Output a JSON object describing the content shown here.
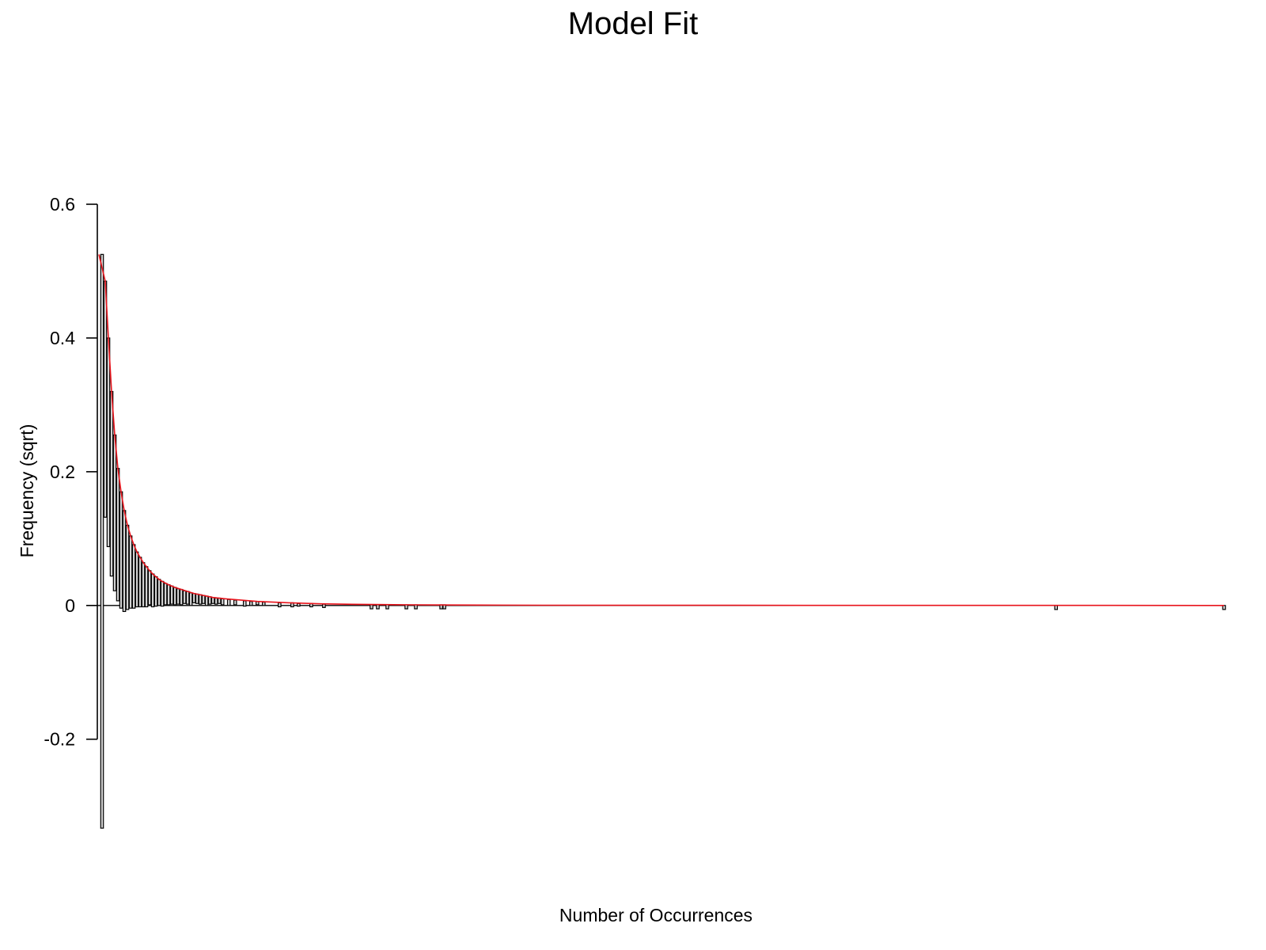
{
  "chart_data": {
    "type": "bar",
    "title": "Model Fit",
    "xlabel": "Number of Occurrences",
    "ylabel": "Frequency (sqrt)",
    "ylim": [
      -0.34,
      0.6
    ],
    "xlim": [
      0,
      355
    ],
    "y_ticks": [
      {
        "value": -0.2,
        "label": "-0.2"
      },
      {
        "value": 0,
        "label": "0"
      },
      {
        "value": 0.2,
        "label": "0.2"
      },
      {
        "value": 0.4,
        "label": "0.4"
      },
      {
        "value": 0.6,
        "label": "0.6"
      }
    ],
    "x_axis_ticks_shown": false,
    "grid": false,
    "rootogram": "hanging",
    "bars_description": "bars hang from the fitted curve; each bar spans [bottom, top] in sqrt-frequency units",
    "bars": [
      {
        "x": 1,
        "top": 0.525,
        "bottom": -0.333
      },
      {
        "x": 2,
        "top": 0.485,
        "bottom": 0.132
      },
      {
        "x": 3,
        "top": 0.4,
        "bottom": 0.088
      },
      {
        "x": 4,
        "top": 0.32,
        "bottom": 0.044
      },
      {
        "x": 5,
        "top": 0.255,
        "bottom": 0.022
      },
      {
        "x": 6,
        "top": 0.205,
        "bottom": 0.007
      },
      {
        "x": 7,
        "top": 0.17,
        "bottom": -0.004
      },
      {
        "x": 8,
        "top": 0.142,
        "bottom": -0.009
      },
      {
        "x": 9,
        "top": 0.12,
        "bottom": -0.006
      },
      {
        "x": 10,
        "top": 0.104,
        "bottom": -0.004
      },
      {
        "x": 11,
        "top": 0.091,
        "bottom": -0.004
      },
      {
        "x": 12,
        "top": 0.08,
        "bottom": -0.002
      },
      {
        "x": 13,
        "top": 0.072,
        "bottom": -0.002
      },
      {
        "x": 14,
        "top": 0.064,
        "bottom": -0.002
      },
      {
        "x": 15,
        "top": 0.058,
        "bottom": -0.002
      },
      {
        "x": 16,
        "top": 0.052,
        "bottom": 0.001
      },
      {
        "x": 17,
        "top": 0.047,
        "bottom": -0.002
      },
      {
        "x": 18,
        "top": 0.043,
        "bottom": -0.001
      },
      {
        "x": 19,
        "top": 0.039,
        "bottom": 0.0
      },
      {
        "x": 20,
        "top": 0.036,
        "bottom": -0.001
      },
      {
        "x": 21,
        "top": 0.033,
        "bottom": 0.001
      },
      {
        "x": 22,
        "top": 0.031,
        "bottom": 0.001
      },
      {
        "x": 23,
        "top": 0.029,
        "bottom": 0.002
      },
      {
        "x": 24,
        "top": 0.027,
        "bottom": 0.001
      },
      {
        "x": 25,
        "top": 0.025,
        "bottom": 0.002
      },
      {
        "x": 26,
        "top": 0.024,
        "bottom": 0.001
      },
      {
        "x": 27,
        "top": 0.022,
        "bottom": 0.003
      },
      {
        "x": 28,
        "top": 0.021,
        "bottom": 0.002
      },
      {
        "x": 29,
        "top": 0.019,
        "bottom": 0.0
      },
      {
        "x": 30,
        "top": 0.018,
        "bottom": 0.004
      },
      {
        "x": 31,
        "top": 0.017,
        "bottom": 0.003
      },
      {
        "x": 32,
        "top": 0.016,
        "bottom": 0.002
      },
      {
        "x": 33,
        "top": 0.015,
        "bottom": 0.003
      },
      {
        "x": 34,
        "top": 0.014,
        "bottom": 0.0
      },
      {
        "x": 35,
        "top": 0.013,
        "bottom": 0.002
      },
      {
        "x": 36,
        "top": 0.012,
        "bottom": 0.003
      },
      {
        "x": 37,
        "top": 0.011,
        "bottom": 0.002
      },
      {
        "x": 38,
        "top": 0.011,
        "bottom": 0.003
      },
      {
        "x": 39,
        "top": 0.01,
        "bottom": 0.001
      },
      {
        "x": 41,
        "top": 0.009,
        "bottom": 0.0
      },
      {
        "x": 43,
        "top": 0.008,
        "bottom": 0.001
      },
      {
        "x": 46,
        "top": 0.007,
        "bottom": -0.001
      },
      {
        "x": 48,
        "top": 0.006,
        "bottom": 0.0
      },
      {
        "x": 50,
        "top": 0.006,
        "bottom": 0.001
      },
      {
        "x": 52,
        "top": 0.005,
        "bottom": 0.0
      },
      {
        "x": 57,
        "top": 0.004,
        "bottom": -0.002
      },
      {
        "x": 61,
        "top": 0.004,
        "bottom": -0.002
      },
      {
        "x": 63,
        "top": 0.003,
        "bottom": -0.001
      },
      {
        "x": 67,
        "top": 0.003,
        "bottom": -0.002
      },
      {
        "x": 71,
        "top": 0.002,
        "bottom": -0.003
      },
      {
        "x": 86,
        "top": 0.001,
        "bottom": -0.005
      },
      {
        "x": 88,
        "top": 0.001,
        "bottom": -0.005
      },
      {
        "x": 91,
        "top": 0.001,
        "bottom": -0.005
      },
      {
        "x": 97,
        "top": 0.001,
        "bottom": -0.005
      },
      {
        "x": 100,
        "top": 0.001,
        "bottom": -0.005
      },
      {
        "x": 108,
        "top": 0.001,
        "bottom": -0.005
      },
      {
        "x": 109,
        "top": 0.001,
        "bottom": -0.005
      },
      {
        "x": 302,
        "top": 0.0,
        "bottom": -0.006
      },
      {
        "x": 355,
        "top": 0.0,
        "bottom": -0.006
      }
    ],
    "series": [
      {
        "type": "line",
        "color": "#e8141c",
        "x": [
          0,
          1,
          2,
          3,
          4,
          5,
          6,
          7,
          8,
          9,
          10,
          11,
          12,
          13,
          14,
          15,
          16,
          17,
          18,
          19,
          20,
          22,
          24,
          26,
          28,
          30,
          33,
          36,
          40,
          45,
          50,
          55,
          60,
          70,
          80,
          90,
          100,
          120,
          140,
          160,
          200,
          250,
          300,
          355
        ],
        "values": [
          0.525,
          0.505,
          0.485,
          0.4,
          0.32,
          0.255,
          0.205,
          0.17,
          0.142,
          0.12,
          0.104,
          0.091,
          0.08,
          0.072,
          0.064,
          0.058,
          0.052,
          0.047,
          0.043,
          0.039,
          0.036,
          0.031,
          0.027,
          0.024,
          0.021,
          0.018,
          0.015,
          0.012,
          0.01,
          0.008,
          0.006,
          0.005,
          0.004,
          0.0025,
          0.0018,
          0.0013,
          0.001,
          0.0006,
          0.0004,
          0.0003,
          0.0002,
          0.0001,
          0.0001,
          0.0
        ]
      }
    ],
    "bar_fill": "#d3d3d3",
    "bar_stroke": "#000000"
  }
}
